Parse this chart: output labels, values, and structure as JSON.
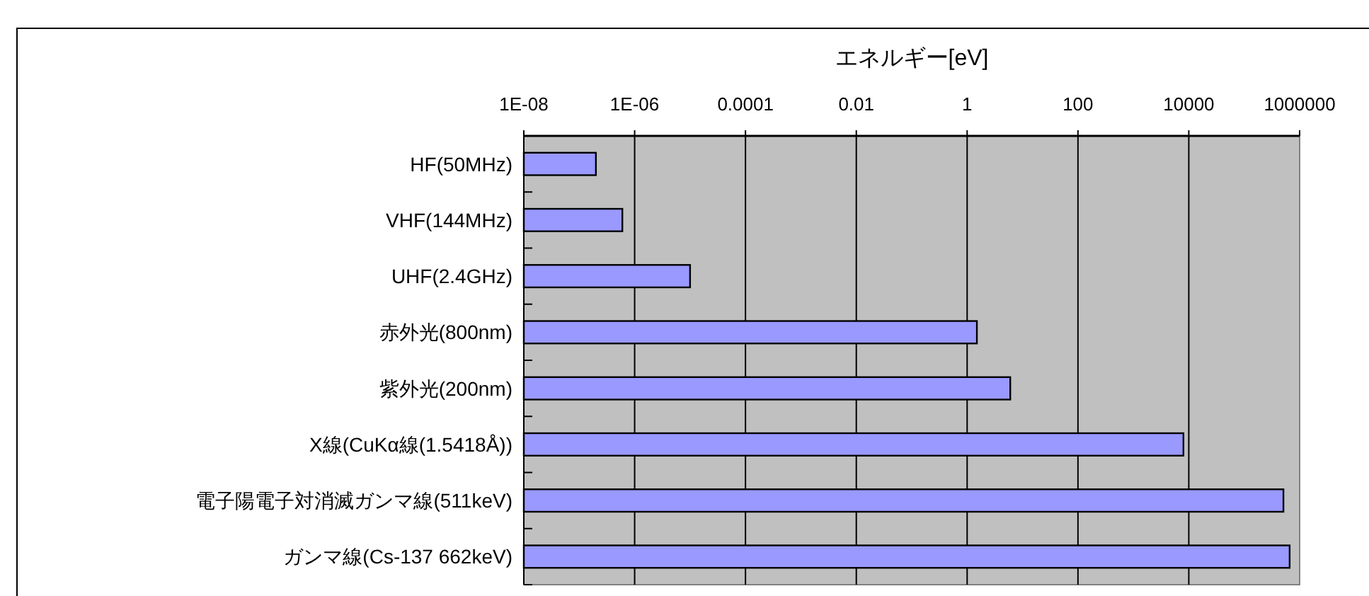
{
  "chart_data": {
    "type": "bar",
    "orientation": "horizontal",
    "log": "x",
    "xlabel": "エネルギー[eV]",
    "categories": [
      "HF(50MHz)",
      "VHF(144MHz)",
      "UHF(2.4GHz)",
      "赤外光(800nm)",
      "紫外光(200nm)",
      "X線(CuKα線(1.5418Å))",
      "電子陽電子対消滅ガンマ線(511keV)",
      "ガンマ線(Cs-137 662keV)"
    ],
    "values": [
      2e-07,
      6e-07,
      1e-05,
      1.5,
      6,
      8000,
      510000,
      660000
    ],
    "color": "#9999ff",
    "xlim": [
      1e-08,
      1000000
    ],
    "xticks": [
      {
        "value": 1e-08,
        "label": "1E-08"
      },
      {
        "value": 1e-06,
        "label": "1E-06"
      },
      0.0001,
      0.01,
      1,
      100,
      10000,
      1000000
    ],
    "grid": "x"
  }
}
